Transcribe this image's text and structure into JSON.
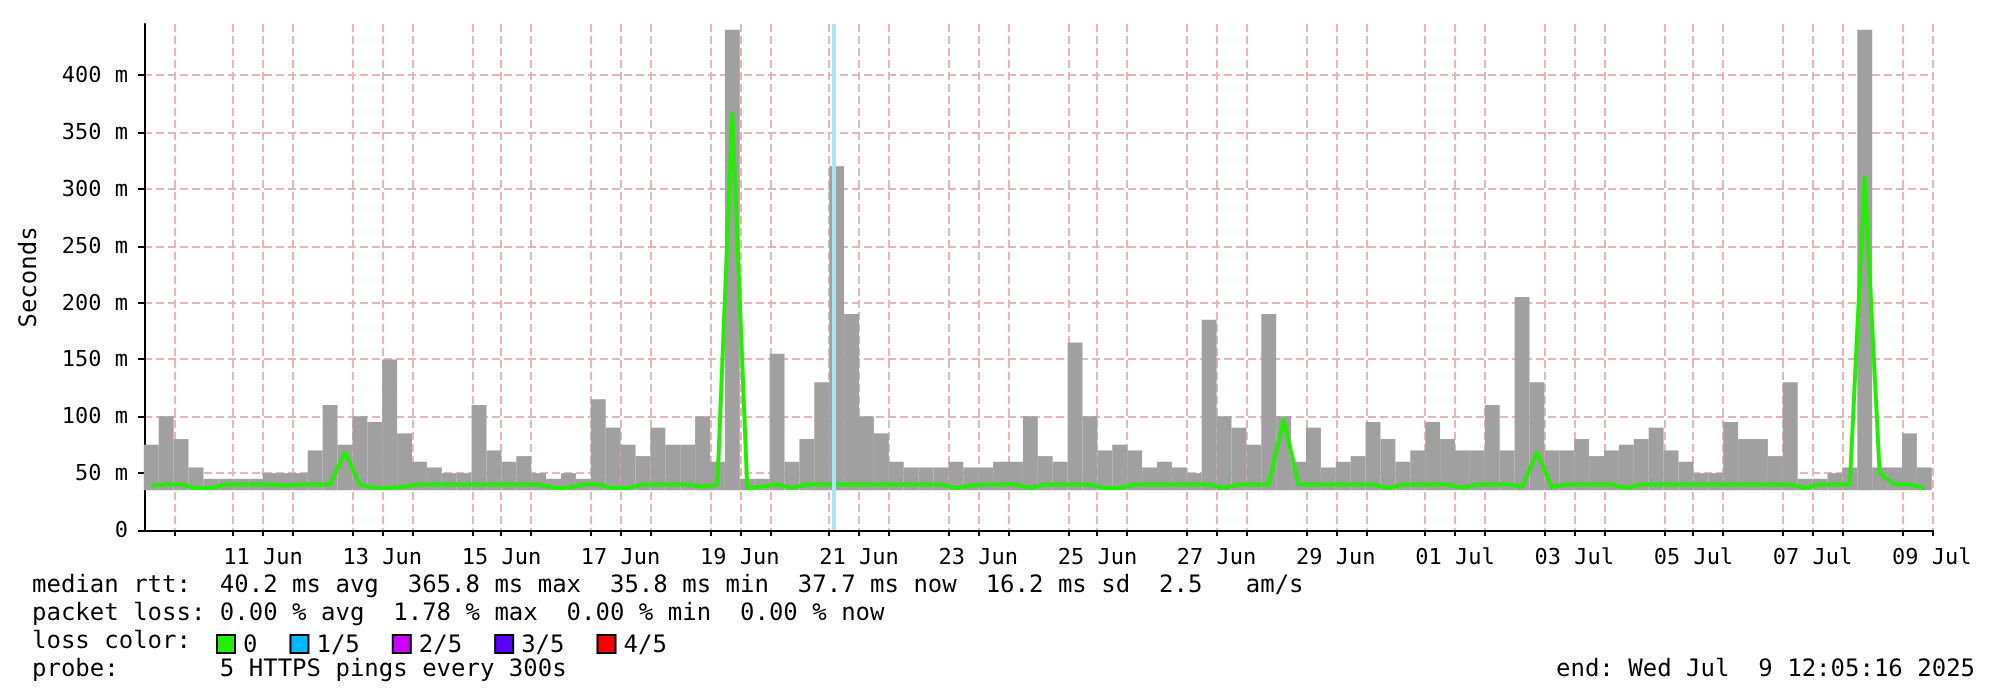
{
  "chart_data": {
    "type": "line",
    "ylabel": "Seconds",
    "annotations": [
      "median rtt:  40.2 ms avg  365.8 ms max  35.8 ms min  37.7 ms now  16.2 ms sd  2.5   am/s",
      "packet loss: 0.00 % avg  1.78 % max  0.00 % min  0.00 % now",
      "loss color:",
      "probe:       5 HTTPS pings every 300s",
      "end: Wed Jul  9 12:05:16 2025"
    ],
    "x": [
      "2025-06-09T15:00",
      "2025-06-09T21:00",
      "2025-06-10T03:00",
      "2025-06-10T09:00",
      "2025-06-10T15:00",
      "2025-06-10T21:00",
      "2025-06-11T03:00",
      "2025-06-11T09:00",
      "2025-06-11T15:00",
      "2025-06-11T21:00",
      "2025-06-12T03:00",
      "2025-06-12T09:00",
      "2025-06-12T15:00",
      "2025-06-12T21:00",
      "2025-06-13T03:00",
      "2025-06-13T09:00",
      "2025-06-13T15:00",
      "2025-06-13T21:00",
      "2025-06-14T03:00",
      "2025-06-14T09:00",
      "2025-06-14T15:00",
      "2025-06-14T21:00",
      "2025-06-15T03:00",
      "2025-06-15T09:00",
      "2025-06-15T15:00",
      "2025-06-15T21:00",
      "2025-06-16T03:00",
      "2025-06-16T09:00",
      "2025-06-16T15:00",
      "2025-06-16T21:00",
      "2025-06-17T03:00",
      "2025-06-17T09:00",
      "2025-06-17T15:00",
      "2025-06-17T21:00",
      "2025-06-18T03:00",
      "2025-06-18T09:00",
      "2025-06-18T15:00",
      "2025-06-18T21:00",
      "2025-06-19T03:00",
      "2025-06-19T09:00",
      "2025-06-19T15:00",
      "2025-06-19T21:00",
      "2025-06-20T03:00",
      "2025-06-20T09:00",
      "2025-06-20T15:00",
      "2025-06-20T21:00",
      "2025-06-21T03:00",
      "2025-06-21T09:00",
      "2025-06-21T15:00",
      "2025-06-21T21:00",
      "2025-06-22T03:00",
      "2025-06-22T09:00",
      "2025-06-22T15:00",
      "2025-06-22T21:00",
      "2025-06-23T03:00",
      "2025-06-23T09:00",
      "2025-06-23T15:00",
      "2025-06-23T21:00",
      "2025-06-24T03:00",
      "2025-06-24T09:00",
      "2025-06-24T15:00",
      "2025-06-24T21:00",
      "2025-06-25T03:00",
      "2025-06-25T09:00",
      "2025-06-25T15:00",
      "2025-06-25T21:00",
      "2025-06-26T03:00",
      "2025-06-26T09:00",
      "2025-06-26T15:00",
      "2025-06-26T21:00",
      "2025-06-27T03:00",
      "2025-06-27T09:00",
      "2025-06-27T15:00",
      "2025-06-27T21:00",
      "2025-06-28T03:00",
      "2025-06-28T09:00",
      "2025-06-28T15:00",
      "2025-06-28T21:00",
      "2025-06-29T03:00",
      "2025-06-29T09:00",
      "2025-06-29T15:00",
      "2025-06-29T21:00",
      "2025-06-30T03:00",
      "2025-06-30T09:00",
      "2025-06-30T15:00",
      "2025-06-30T21:00",
      "2025-07-01T03:00",
      "2025-07-01T09:00",
      "2025-07-01T15:00",
      "2025-07-01T21:00",
      "2025-07-02T03:00",
      "2025-07-02T09:00",
      "2025-07-02T15:00",
      "2025-07-02T21:00",
      "2025-07-03T03:00",
      "2025-07-03T09:00",
      "2025-07-03T15:00",
      "2025-07-03T21:00",
      "2025-07-04T03:00",
      "2025-07-04T09:00",
      "2025-07-04T15:00",
      "2025-07-04T21:00",
      "2025-07-05T03:00",
      "2025-07-05T09:00",
      "2025-07-05T15:00",
      "2025-07-05T21:00",
      "2025-07-06T03:00",
      "2025-07-06T09:00",
      "2025-07-06T15:00",
      "2025-07-06T21:00",
      "2025-07-07T03:00",
      "2025-07-07T09:00",
      "2025-07-07T15:00",
      "2025-07-07T21:00",
      "2025-07-08T03:00",
      "2025-07-08T09:00",
      "2025-07-08T15:00",
      "2025-07-08T21:00",
      "2025-07-09T03:00",
      "2025-07-09T09:00"
    ],
    "series": [
      {
        "type": "bar",
        "color": "#a0a0a0",
        "base": [
          35,
          35,
          35,
          35,
          35,
          35,
          35,
          35,
          35,
          35,
          35,
          35,
          35,
          35,
          35,
          35,
          35,
          35,
          35,
          35,
          35,
          35,
          35,
          35,
          35,
          35,
          35,
          35,
          35,
          35,
          35,
          35,
          35,
          35,
          35,
          35,
          35,
          35,
          35,
          35,
          35,
          35,
          35,
          35,
          35,
          35,
          35,
          35,
          35,
          35,
          35,
          35,
          35,
          35,
          35,
          35,
          35,
          35,
          35,
          35,
          35,
          35,
          35,
          35,
          35,
          35,
          35,
          35,
          35,
          35,
          35,
          35,
          35,
          35,
          35,
          35,
          35,
          35,
          35,
          35,
          35,
          35,
          35,
          35,
          35,
          35,
          35,
          35,
          35,
          35,
          35,
          35,
          35,
          35,
          35,
          35,
          35,
          35,
          35,
          35,
          35,
          35,
          35,
          35,
          35,
          35,
          35,
          35,
          35,
          35,
          35,
          35,
          35,
          35,
          35,
          35,
          35,
          35,
          35,
          35
        ],
        "values": [
          40,
          65,
          45,
          20,
          10,
          10,
          10,
          10,
          15,
          15,
          15,
          35,
          75,
          40,
          65,
          60,
          115,
          50,
          25,
          20,
          15,
          15,
          75,
          35,
          25,
          30,
          15,
          10,
          15,
          10,
          80,
          55,
          40,
          30,
          55,
          40,
          40,
          65,
          25,
          405,
          10,
          10,
          120,
          25,
          45,
          95,
          285,
          155,
          65,
          50,
          25,
          20,
          20,
          20,
          25,
          20,
          20,
          25,
          25,
          65,
          30,
          25,
          130,
          65,
          35,
          40,
          35,
          20,
          25,
          20,
          15,
          150,
          65,
          55,
          40,
          155,
          65,
          25,
          55,
          20,
          25,
          30,
          60,
          45,
          25,
          35,
          60,
          45,
          35,
          35,
          75,
          35,
          170,
          95,
          35,
          35,
          45,
          30,
          35,
          40,
          45,
          55,
          35,
          25,
          15,
          15,
          60,
          45,
          45,
          30,
          95,
          10,
          10,
          15,
          20,
          405,
          20,
          20,
          50,
          20
        ]
      },
      {
        "name": "0",
        "color": "#22ee00",
        "values": [
          39,
          40,
          40,
          37,
          37,
          40,
          40,
          40,
          40,
          39,
          40,
          40,
          40,
          68,
          40,
          37,
          37,
          38,
          40,
          40,
          40,
          40,
          40,
          40,
          40,
          40,
          40,
          37,
          37,
          40,
          40,
          37,
          37,
          40,
          40,
          40,
          40,
          38,
          40,
          366,
          37,
          38,
          40,
          37,
          40,
          40,
          40,
          40,
          40,
          40,
          40,
          40,
          40,
          40,
          37,
          39,
          40,
          40,
          40,
          37,
          40,
          40,
          40,
          40,
          37,
          37,
          40,
          40,
          40,
          40,
          40,
          40,
          37,
          40,
          40,
          40,
          97,
          40,
          40,
          40,
          40,
          40,
          40,
          37,
          40,
          40,
          40,
          40,
          37,
          40,
          40,
          40,
          38,
          68,
          38,
          40,
          40,
          40,
          40,
          37,
          40,
          40,
          40,
          40,
          40,
          40,
          40,
          40,
          40,
          40,
          40,
          37,
          40,
          40,
          40,
          310,
          50,
          40,
          40,
          37
        ]
      },
      {
        "name": "1/5",
        "color": "#00b8ff",
        "values": [
          null,
          null,
          null,
          null,
          null,
          null,
          null,
          null,
          null,
          null,
          null,
          null,
          null,
          null,
          null,
          null,
          null,
          null,
          null,
          null,
          null,
          null,
          null,
          null,
          null,
          null,
          null,
          null,
          null,
          null,
          null,
          null,
          null,
          null,
          null,
          null,
          null,
          null,
          null,
          null,
          null,
          null,
          null,
          null,
          null,
          null,
          null,
          null,
          null,
          null,
          null,
          null,
          null,
          null,
          null,
          null,
          null,
          null,
          null,
          null,
          null,
          null,
          null,
          null,
          null,
          null,
          null,
          null,
          null,
          null,
          null,
          null,
          null,
          null,
          null,
          null,
          null,
          null,
          null,
          null,
          null,
          null,
          null,
          null,
          null,
          null,
          null,
          null,
          null,
          null,
          null,
          null,
          null,
          null,
          null,
          null,
          null,
          null,
          null,
          null,
          null,
          null,
          null,
          null,
          null,
          null,
          null,
          null,
          null,
          null,
          null,
          null,
          null,
          null,
          null,
          null,
          null,
          null,
          null,
          null
        ]
      },
      {
        "name": "2/5",
        "color": "#cc00ff",
        "values": [
          null,
          null,
          null,
          null,
          null,
          null,
          null,
          null,
          null,
          null,
          null,
          null,
          null,
          null,
          null,
          null,
          null,
          null,
          null,
          null,
          null,
          null,
          null,
          null,
          null,
          null,
          null,
          null,
          null,
          null,
          null,
          null,
          null,
          null,
          null,
          null,
          null,
          null,
          null,
          null,
          null,
          null,
          null,
          null,
          null,
          null,
          null,
          null,
          null,
          null,
          null,
          null,
          null,
          null,
          null,
          null,
          null,
          null,
          null,
          null,
          null,
          null,
          null,
          null,
          null,
          null,
          null,
          null,
          null,
          null,
          null,
          null,
          null,
          null,
          null,
          null,
          null,
          null,
          null,
          null,
          null,
          null,
          null,
          null,
          null,
          null,
          null,
          null,
          null,
          null,
          null,
          null,
          null,
          null,
          null,
          null,
          null,
          null,
          null,
          null,
          null,
          null,
          null,
          null,
          null,
          null,
          null,
          null,
          null,
          null,
          null,
          null,
          null,
          null,
          null,
          null,
          null,
          null,
          null,
          null
        ]
      },
      {
        "name": "3/5",
        "color": "#5a00ff",
        "values": [
          null,
          null,
          null,
          null,
          null,
          null,
          null,
          null,
          null,
          null,
          null,
          null,
          null,
          null,
          null,
          null,
          null,
          null,
          null,
          null,
          null,
          null,
          null,
          null,
          null,
          null,
          null,
          null,
          null,
          null,
          null,
          null,
          null,
          null,
          null,
          null,
          null,
          null,
          null,
          null,
          null,
          null,
          null,
          null,
          null,
          null,
          null,
          null,
          null,
          null,
          null,
          null,
          null,
          null,
          null,
          null,
          null,
          null,
          null,
          null,
          null,
          null,
          null,
          null,
          null,
          null,
          null,
          null,
          null,
          null,
          null,
          null,
          null,
          null,
          null,
          null,
          null,
          null,
          null,
          null,
          null,
          null,
          null,
          null,
          null,
          null,
          null,
          null,
          null,
          null,
          null,
          null,
          null,
          null,
          null,
          null,
          null,
          null,
          null,
          null,
          null,
          null,
          null,
          null,
          null,
          null,
          null,
          null,
          null,
          null,
          null,
          null,
          null,
          null,
          null,
          null,
          null,
          null,
          null,
          null
        ]
      },
      {
        "name": "4/5",
        "color": "#ff0000",
        "values": [
          null,
          null,
          null,
          null,
          null,
          null,
          null,
          null,
          null,
          null,
          null,
          null,
          null,
          null,
          null,
          null,
          null,
          null,
          null,
          null,
          null,
          null,
          null,
          null,
          null,
          null,
          null,
          null,
          null,
          null,
          null,
          null,
          null,
          null,
          null,
          null,
          null,
          null,
          null,
          null,
          null,
          null,
          null,
          null,
          null,
          null,
          null,
          null,
          null,
          null,
          null,
          null,
          null,
          null,
          null,
          null,
          null,
          null,
          null,
          null,
          null,
          null,
          null,
          null,
          null,
          null,
          null,
          null,
          null,
          null,
          null,
          null,
          null,
          null,
          null,
          null,
          null,
          null,
          null,
          null,
          null,
          null,
          null,
          null,
          null,
          null,
          null,
          null,
          null,
          null,
          null,
          null,
          null,
          null,
          null,
          null,
          null,
          null,
          null,
          null,
          null,
          null,
          null,
          null,
          null,
          null,
          null,
          null,
          null,
          null,
          null,
          null,
          null,
          null,
          null,
          null,
          null,
          null,
          null,
          null
        ]
      }
    ],
    "ref_lines": [
      {
        "axis": "x",
        "value": "2025-06-21T01:50",
        "color": "#a8e4f4"
      }
    ],
    "xlim": [
      "2025-06-09T12:05",
      "2025-07-09T12:05"
    ],
    "xticks": [
      {
        "value": "2025-06-10T00:00",
        "label": null
      },
      {
        "value": "2025-06-11T00:00",
        "label": null
      },
      {
        "value": "2025-06-11T12:00",
        "label": "11 Jun"
      },
      {
        "value": "2025-06-12T00:00",
        "label": null
      },
      {
        "value": "2025-06-13T00:00",
        "label": null
      },
      {
        "value": "2025-06-13T12:00",
        "label": "13 Jun"
      },
      {
        "value": "2025-06-14T00:00",
        "label": null
      },
      {
        "value": "2025-06-15T00:00",
        "label": null
      },
      {
        "value": "2025-06-15T12:00",
        "label": "15 Jun"
      },
      {
        "value": "2025-06-16T00:00",
        "label": null
      },
      {
        "value": "2025-06-17T00:00",
        "label": null
      },
      {
        "value": "2025-06-17T12:00",
        "label": "17 Jun"
      },
      {
        "value": "2025-06-18T00:00",
        "label": null
      },
      {
        "value": "2025-06-19T00:00",
        "label": null
      },
      {
        "value": "2025-06-19T12:00",
        "label": "19 Jun"
      },
      {
        "value": "2025-06-20T00:00",
        "label": null
      },
      {
        "value": "2025-06-21T00:00",
        "label": null
      },
      {
        "value": "2025-06-21T12:00",
        "label": "21 Jun"
      },
      {
        "value": "2025-06-22T00:00",
        "label": null
      },
      {
        "value": "2025-06-23T00:00",
        "label": null
      },
      {
        "value": "2025-06-23T12:00",
        "label": "23 Jun"
      },
      {
        "value": "2025-06-24T00:00",
        "label": null
      },
      {
        "value": "2025-06-25T00:00",
        "label": null
      },
      {
        "value": "2025-06-25T12:00",
        "label": "25 Jun"
      },
      {
        "value": "2025-06-26T00:00",
        "label": null
      },
      {
        "value": "2025-06-27T00:00",
        "label": null
      },
      {
        "value": "2025-06-27T12:00",
        "label": "27 Jun"
      },
      {
        "value": "2025-06-28T00:00",
        "label": null
      },
      {
        "value": "2025-06-29T00:00",
        "label": null
      },
      {
        "value": "2025-06-29T12:00",
        "label": "29 Jun"
      },
      {
        "value": "2025-06-30T00:00",
        "label": null
      },
      {
        "value": "2025-07-01T00:00",
        "label": null
      },
      {
        "value": "2025-07-01T12:00",
        "label": "01 Jul"
      },
      {
        "value": "2025-07-02T00:00",
        "label": null
      },
      {
        "value": "2025-07-03T00:00",
        "label": null
      },
      {
        "value": "2025-07-03T12:00",
        "label": "03 Jul"
      },
      {
        "value": "2025-07-04T00:00",
        "label": null
      },
      {
        "value": "2025-07-05T00:00",
        "label": null
      },
      {
        "value": "2025-07-05T12:00",
        "label": "05 Jul"
      },
      {
        "value": "2025-07-06T00:00",
        "label": null
      },
      {
        "value": "2025-07-07T00:00",
        "label": null
      },
      {
        "value": "2025-07-07T12:00",
        "label": "07 Jul"
      },
      {
        "value": "2025-07-08T00:00",
        "label": null
      },
      {
        "value": "2025-07-09T00:00",
        "label": null
      },
      {
        "value": "2025-07-09T12:00",
        "label": "09 Jul"
      }
    ],
    "ylim": [
      0,
      445
    ],
    "yticks": [
      0,
      {
        "value": 50,
        "label": "50 m"
      },
      {
        "value": 100,
        "label": "100 m"
      },
      {
        "value": 150,
        "label": "150 m"
      },
      {
        "value": 200,
        "label": "200 m"
      },
      {
        "value": 250,
        "label": "250 m"
      },
      {
        "value": 300,
        "label": "300 m"
      },
      {
        "value": 350,
        "label": "350 m"
      },
      {
        "value": 400,
        "label": "400 m"
      }
    ],
    "grid": true,
    "legend": "bottom left",
    "marker": "none",
    "line_style": "solid"
  }
}
